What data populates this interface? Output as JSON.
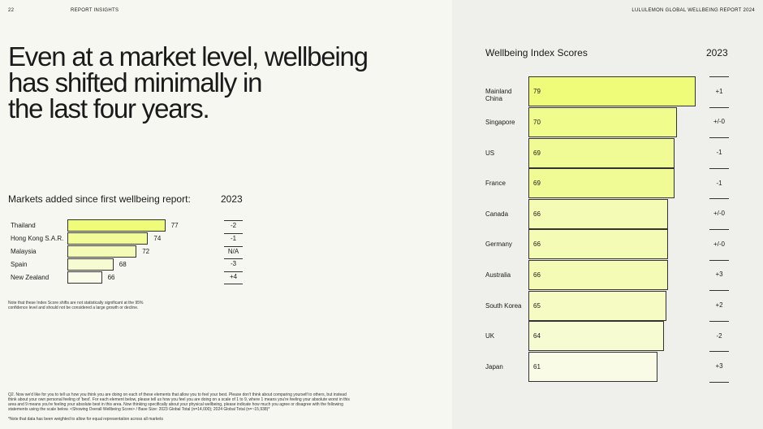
{
  "header": {
    "page_number": "22",
    "section": "REPORT INSIGHTS",
    "report_title": "LULULEMON GLOBAL WELLBEING REPORT 2024"
  },
  "headline": [
    "Even at a market level, wellbeing",
    "has shifted minimally in",
    "the last four years."
  ],
  "significance_note": "Note that these Index Score shifts are not statistically significant at the 95% confidence level and should not be considered a large growth or decline.",
  "footnote": "Q2. Now we'd like for you to tell us how you think you are doing on each of these elements that allow you to feel your best. Please don't think about comparing yourself to others, but instead think about your own personal feeling of 'best'. For each element below, please tell us how you feel you are doing on a scale of 1 to 9, where 1 means you're feeling your absolute worst in this area and 9 means you're feeling your absolute best in this area. Now thinking specifically about your physical wellbeing, please indicate how much you agree or disagree with the following statements using the scale below. <Showing Overall Wellbeing Score> / Base Size: 2023 Global Total (n=14,000); 2024 Global Total (n=~15,938)*",
  "weighting_note": "*Note that data has been weighted to allow for equal representation across all markets",
  "chart_data": [
    {
      "type": "hbar",
      "title": "Markets added since first wellbeing report:",
      "change_header": "2023",
      "categories": [
        "Thailand",
        "Hong Kong S.A.R.",
        "Malaysia",
        "Spain",
        "New Zealand"
      ],
      "values": [
        77,
        74,
        72,
        68,
        66
      ],
      "changes": [
        "-2",
        "-1",
        "N/A",
        "-3",
        "+4"
      ],
      "colors": [
        "#eefc7a",
        "#f1fb98",
        "#f4fbb6",
        "#f7fbd2",
        "#fafbe8"
      ],
      "xlim": [
        60,
        80
      ]
    },
    {
      "type": "hbar",
      "title": "Wellbeing Index Scores",
      "change_header": "2023",
      "categories": [
        "Mainland China",
        "Singapore",
        "US",
        "France",
        "Canada",
        "Germany",
        "Australia",
        "South Korea",
        "UK",
        "Japan"
      ],
      "values": [
        79,
        70,
        69,
        69,
        66,
        66,
        66,
        65,
        64,
        61
      ],
      "changes": [
        "+1",
        "+/-0",
        "-1",
        "-1",
        "+/-0",
        "+/-0",
        "+3",
        "+2",
        "-2",
        "+3"
      ],
      "colors": [
        "#eefc7a",
        "#f0fc8c",
        "#f1fb96",
        "#f1fb96",
        "#f4fbb4",
        "#f4fbb4",
        "#f4fbb4",
        "#f6fbc4",
        "#f7fbd2",
        "#fafbe6"
      ],
      "xlim": [
        0,
        80
      ]
    }
  ]
}
